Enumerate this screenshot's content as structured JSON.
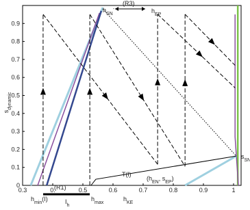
{
  "chart_data": {
    "type": "line",
    "x_label": [
      {
        "text": "h"
      },
      {
        "text": "KE",
        "sub": true
      }
    ],
    "y_label": [
      {
        "text": "s"
      },
      {
        "text": "dynamic",
        "sub": true
      }
    ],
    "xlim": [
      0.3,
      1.025
    ],
    "ylim": [
      0,
      1
    ],
    "xticks": [
      0.3,
      {
        "value": 0.4,
        "label": "0."
      },
      0.5,
      0.6,
      0.7,
      0.8,
      0.9,
      1
    ],
    "yticks": [
      0,
      0.1,
      0.2,
      0.3,
      0.4,
      0.5,
      0.6,
      0.7,
      0.8,
      0.9
    ],
    "series": [
      {
        "color": "#9fd0e0",
        "width": 3,
        "x": [
          0.327,
          0.566
        ],
        "y": [
          0,
          0.989
        ]
      },
      {
        "color": "#8a4f9e",
        "width": 1.5,
        "x": [
          0.35,
          0.555
        ],
        "y": [
          0,
          0.958
        ]
      },
      {
        "color": "#34488f",
        "width": 2.5,
        "x": [
          0.38,
          0.561
        ],
        "y": [
          0,
          0.97
        ]
      },
      {
        "color": "#7cc24a",
        "width": 2.5,
        "x": [
          1.014,
          1.014
        ],
        "y": [
          0,
          1
        ]
      },
      {
        "color": "#8a4f9e",
        "width": 1.5,
        "x": [
          1.005,
          1.005,
          1.016
        ],
        "y": [
          0.95,
          0.27,
          0
        ]
      },
      {
        "color": "#9fd0e0",
        "width": 3,
        "x": [
          0.839,
          1.009
        ],
        "y": [
          0,
          0.163
        ]
      },
      {
        "color": "#000000",
        "width": 1,
        "x": [
          0.527,
          0.543,
          1.009
        ],
        "y": [
          0,
          0.034,
          0.163
        ]
      },
      {
        "color": "#000000",
        "width": 1,
        "dash": "dotted",
        "x": [
          0.566,
          1.009
        ],
        "y": [
          0.981,
          0.163
        ]
      },
      {
        "color": "#000000",
        "width": 1,
        "dash": "dashed",
        "arrow": true,
        "x": [
          0.368,
          0.368
        ],
        "y": [
          0,
          0.951
        ]
      },
      {
        "color": "#000000",
        "width": 1,
        "dash": "dashed",
        "arrow": true,
        "x": [
          0.368,
          0.748
        ],
        "y": [
          0.951,
          0.117
        ]
      },
      {
        "color": "#000000",
        "width": 1,
        "dash": "dashed",
        "arrow": true,
        "x": [
          0.523,
          0.523
        ],
        "y": [
          0,
          0.951
        ]
      },
      {
        "color": "#000000",
        "width": 1,
        "dash": "dashed",
        "arrow": true,
        "x": [
          0.523,
          0.839
        ],
        "y": [
          0.951,
          0.106
        ]
      },
      {
        "color": "#000000",
        "width": 1,
        "dash": "dashed",
        "arrow": true,
        "x": [
          0.748,
          0.748
        ],
        "y": [
          0.117,
          0.951
        ]
      },
      {
        "color": "#000000",
        "width": 1,
        "dash": "dashed",
        "arrow": true,
        "x": [
          0.748,
          1.005
        ],
        "y": [
          0.951,
          0.542
        ]
      },
      {
        "color": "#000000",
        "width": 1,
        "dash": "dashed",
        "arrow": true,
        "x": [
          0.839,
          0.839
        ],
        "y": [
          0.106,
          0.951
        ]
      },
      {
        "color": "#000000",
        "width": 1,
        "dash": "dashed",
        "arrow": true,
        "x": [
          0.839,
          1.005
        ],
        "y": [
          0.951,
          0.667
        ]
      }
    ],
    "annotations": [
      [
        {
          "text": "h"
        },
        {
          "text": "SN",
          "sub": true
        },
        {
          "text": "-",
          "sup": true
        }
      ],
      [
        {
          "text": "(R3)"
        }
      ],
      [
        {
          "text": "h"
        },
        {
          "text": "EP",
          "sub": true
        }
      ],
      [
        {
          "text": "s"
        },
        {
          "text": "SN",
          "sub": true
        }
      ],
      [
        {
          "text": "T(l)"
        }
      ],
      [
        {
          "text": "(h"
        },
        {
          "text": "EN",
          "sub": true
        },
        {
          "text": ", s"
        },
        {
          "text": "EP",
          "sub": true
        },
        {
          "text": ")"
        }
      ],
      [
        {
          "text": "(R1)"
        }
      ],
      [
        {
          "text": "h"
        },
        {
          "text": "min",
          "sub": true
        },
        {
          "text": "(I)"
        }
      ],
      [
        {
          "text": "I"
        },
        {
          "text": "h",
          "sub": true
        }
      ],
      [
        {
          "text": "h"
        },
        {
          "text": "max",
          "sub": true
        }
      ]
    ]
  }
}
